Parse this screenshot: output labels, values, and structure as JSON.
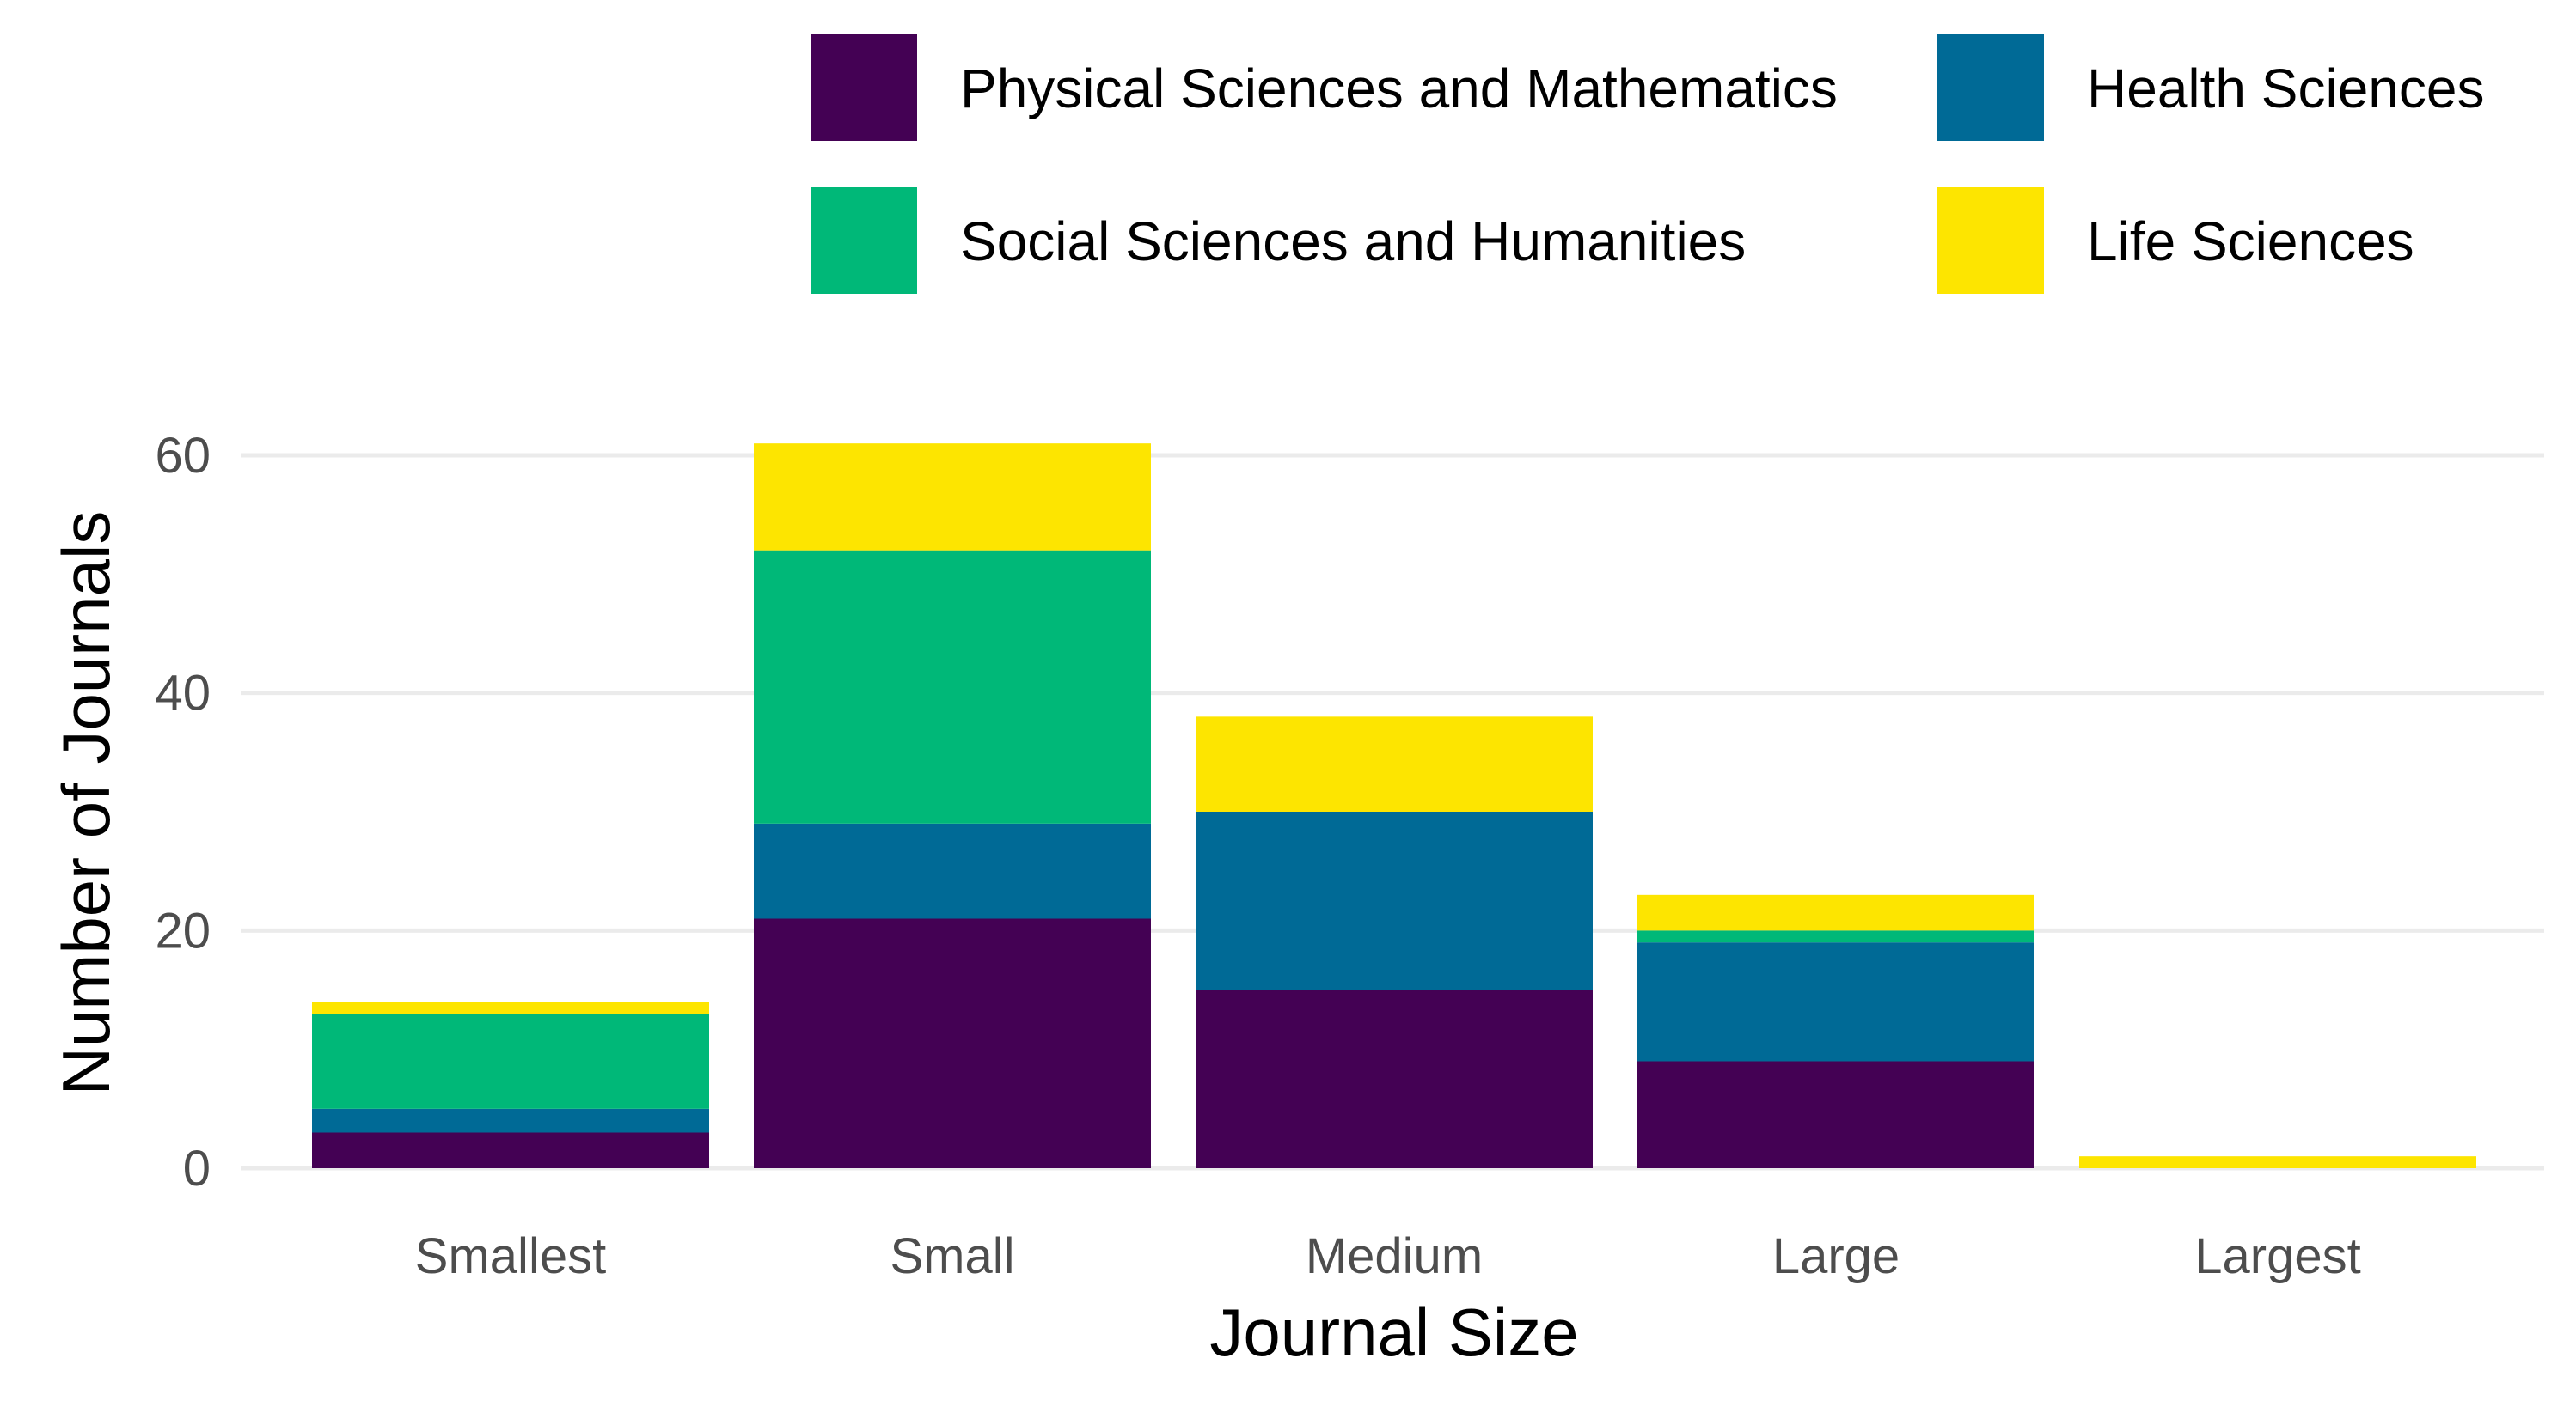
{
  "chart_data": {
    "type": "bar",
    "stacked": true,
    "title": "",
    "xlabel": "Journal Size",
    "ylabel": "Number of Journals",
    "categories": [
      "Smallest",
      "Small",
      "Medium",
      "Large",
      "Largest"
    ],
    "ylim": [
      0,
      65
    ],
    "yticks": [
      0,
      20,
      40,
      60
    ],
    "ytick_labels": [
      "0",
      "20",
      "40",
      "60"
    ],
    "grid": true,
    "legend_position": "top",
    "series": [
      {
        "name": "Physical Sciences and Mathematics",
        "color": "#440154",
        "values": [
          3,
          21,
          15,
          9,
          0
        ]
      },
      {
        "name": "Health Sciences",
        "color": "#006a96",
        "values": [
          2,
          8,
          15,
          10,
          0
        ]
      },
      {
        "name": "Social Sciences and Humanities",
        "color": "#00b878",
        "values": [
          8,
          23,
          0,
          1,
          0
        ]
      },
      {
        "name": "Life Sciences",
        "color": "#fde500",
        "values": [
          1,
          9,
          8,
          3,
          1
        ]
      }
    ],
    "legend_order": [
      "Physical Sciences and Mathematics",
      "Health Sciences",
      "Social Sciences and Humanities",
      "Life Sciences"
    ]
  }
}
